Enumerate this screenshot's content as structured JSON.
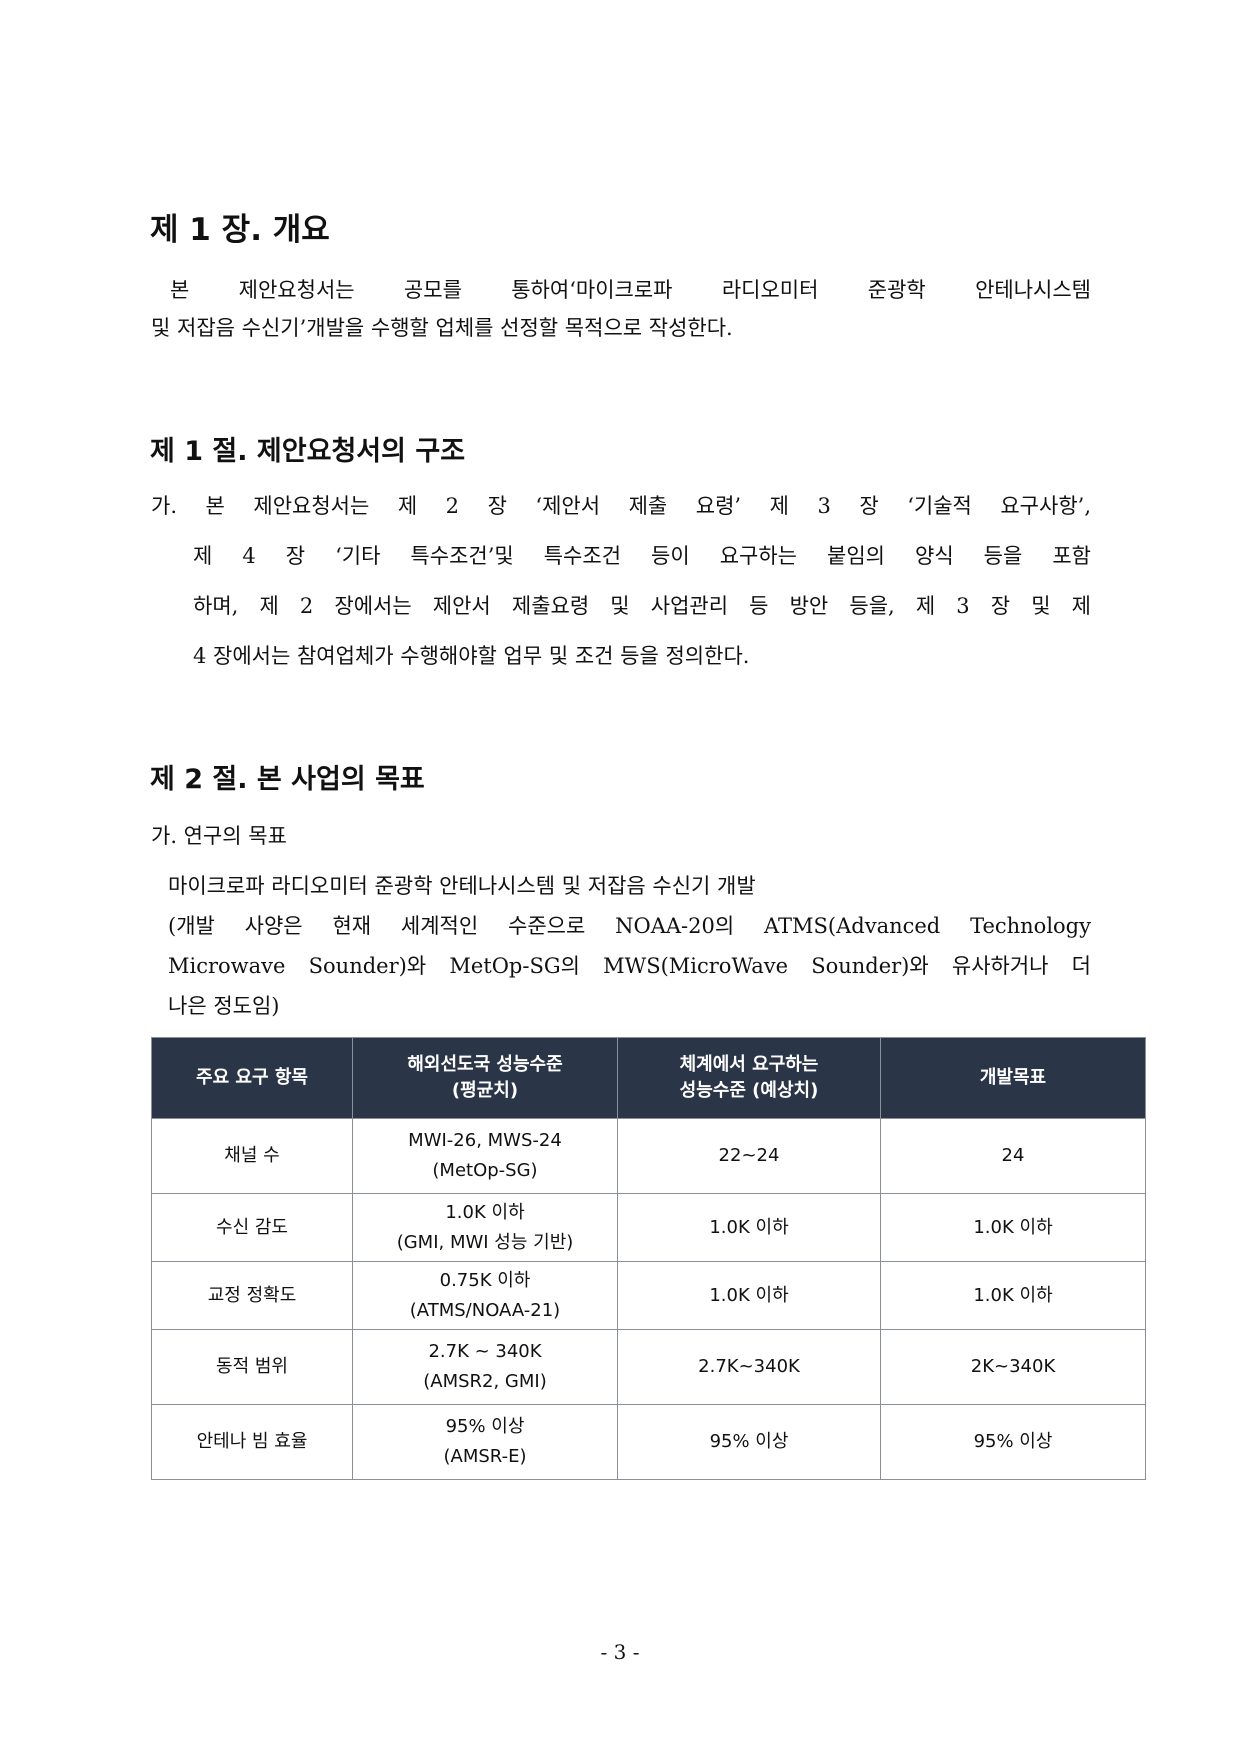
{
  "chapter": {
    "title": "제 1 장. 개요",
    "paragraph": [
      "본 제안요청서는 공모를 통하여‘마이크로파 라디오미터 준광학 안테나시스템",
      "및 저잡음 수신기’개발을 수행할 업체를 선정할 목적으로 작성한다."
    ]
  },
  "section1": {
    "title": "제 1 절. 제안요청서의 구조",
    "lines": [
      "가. 본 제안요청서는 제 2 장 ‘제안서 제출 요령’ 제 3 장 ‘기술적 요구사항’,",
      "제 4 장 ‘기타 특수조건’및 특수조건  등이 요구하는 붙임의 양식 등을 포함",
      "하며, 제 2 장에서는 제안서 제출요령 및 사업관리 등 방안 등을, 제 3 장 및 제",
      "4 장에서는 참여업체가 수행해야할 업무 및 조건 등을 정의한다."
    ]
  },
  "section2": {
    "title": "제 2 절. 본 사업의 목표",
    "subheading": "가. 연구의 목표",
    "lines": [
      "마이크로파 라디오미터 준광학 안테나시스템 및 저잡음 수신기 개발",
      "(개발 사양은 현재 세계적인 수준으로 NOAA-20의 ATMS(Advanced Technology",
      "Microwave Sounder)와 MetOp-SG의 MWS(MicroWave Sounder)와 유사하거나 더",
      "나은 정도임)"
    ]
  },
  "table": {
    "header_color": "#2b3548",
    "headers": [
      [
        "주요 요구 항목"
      ],
      [
        "해외선도국 성능수준",
        "(평균치)"
      ],
      [
        "체계에서 요구하는",
        "성능수준 (예상치)"
      ],
      [
        "개발목표"
      ]
    ],
    "rows": [
      [
        [
          "채널 수"
        ],
        [
          "MWI-26, MWS-24",
          "(MetOp-SG)"
        ],
        [
          "22~24"
        ],
        [
          "24"
        ]
      ],
      [
        [
          "수신 감도"
        ],
        [
          "1.0K 이하",
          "(GMI, MWI 성능 기반)"
        ],
        [
          "1.0K 이하"
        ],
        [
          "1.0K 이하"
        ]
      ],
      [
        [
          "교정 정확도"
        ],
        [
          "0.75K 이하",
          "(ATMS/NOAA-21)"
        ],
        [
          "1.0K 이하"
        ],
        [
          "1.0K 이하"
        ]
      ],
      [
        [
          "동적 범위"
        ],
        [
          "2.7K ~ 340K",
          "(AMSR2, GMI)"
        ],
        [
          "2.7K~340K"
        ],
        [
          "2K~340K"
        ]
      ],
      [
        [
          "안테나 빔 효율"
        ],
        [
          "95% 이상",
          "(AMSR-E)"
        ],
        [
          "95% 이상"
        ],
        [
          "95% 이상"
        ]
      ]
    ]
  },
  "page_number": "- 3 -"
}
